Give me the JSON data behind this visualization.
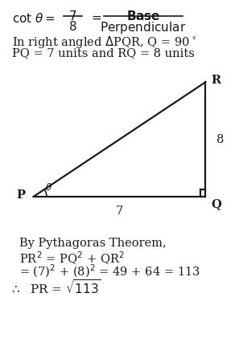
{
  "bg_color": "#ffffff",
  "text_color": "#1a1a1a",
  "line_color": "#1a1a1a",
  "fig_width": 2.97,
  "fig_height": 4.26,
  "dpi": 100,
  "triangle": {
    "P": [
      0.14,
      0.425
    ],
    "Q": [
      0.86,
      0.425
    ],
    "R": [
      0.86,
      0.76
    ]
  },
  "label_P": "P",
  "label_Q": "Q",
  "label_R": "R",
  "side_PQ": "7",
  "side_QR": "8"
}
